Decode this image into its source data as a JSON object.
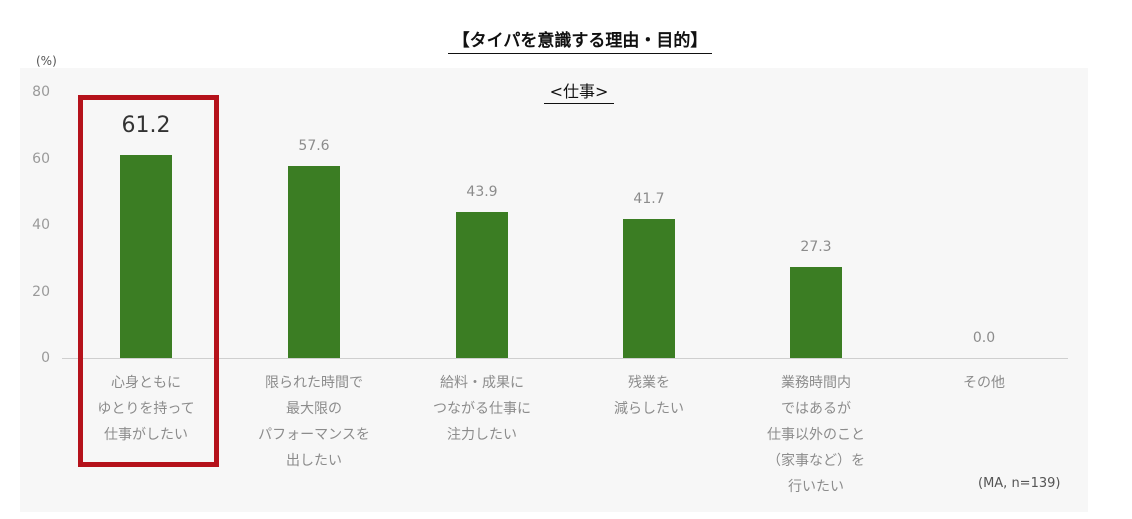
{
  "title": "【タイパを意識する理由・目的】",
  "subtitle": "<仕事>",
  "unit_label": "(%)",
  "note": "(MA, n=139)",
  "colors": {
    "bar": "#3b7d23",
    "highlight": "#b5121b"
  },
  "chart_data": {
    "type": "bar",
    "ylim": [
      0,
      80
    ],
    "yticks": [
      "80",
      "60",
      "40",
      "20",
      "0"
    ],
    "categories": [
      "心身ともに\nゆとりを持って\n仕事がしたい",
      "限られた時間で\n最大限の\nパフォーマンスを\n出したい",
      "給料・成果に\nつながる仕事に\n注力したい",
      "残業を\n減らしたい",
      "業務時間内\nではあるが\n仕事以外のこと\n（家事など）を\n行いたい",
      "その他"
    ],
    "values": [
      61.2,
      57.6,
      43.9,
      41.7,
      27.3,
      0.0
    ],
    "labels": [
      "61.2",
      "57.6",
      "43.9",
      "41.7",
      "27.3",
      "0.0"
    ],
    "highlighted_index": 0
  }
}
